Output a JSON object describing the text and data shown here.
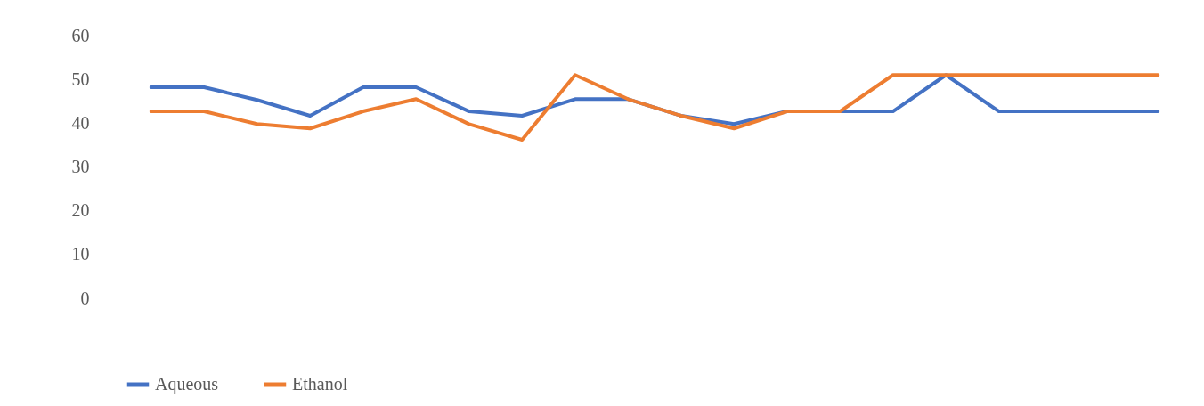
{
  "chart_data": {
    "type": "line",
    "categories": [
      null,
      null,
      null,
      null,
      null,
      null,
      null,
      null,
      null,
      null,
      null,
      null,
      null,
      null,
      null,
      null,
      null,
      null,
      null,
      null
    ],
    "series": [
      {
        "name": "Aqueous",
        "color": "#4472c4",
        "values": [
          48.2,
          48.2,
          45.3,
          41.7,
          48.2,
          48.2,
          42.7,
          41.7,
          45.5,
          45.5,
          41.7,
          39.8,
          42.7,
          42.7,
          42.7,
          51,
          42.7,
          42.7,
          42.7,
          42.7
        ]
      },
      {
        "name": "Ethanol",
        "color": "#ed7d31",
        "values": [
          42.7,
          42.7,
          39.8,
          38.8,
          42.7,
          45.5,
          39.8,
          36.2,
          51,
          45.5,
          41.7,
          38.8,
          42.7,
          42.7,
          51,
          51,
          51,
          51,
          51,
          51
        ]
      }
    ],
    "ylim": [
      0,
      60
    ],
    "yticks": [
      0,
      10,
      20,
      30,
      40,
      50,
      60
    ],
    "grid": false,
    "legend": "bottom",
    "tick_labels": "y",
    "line_style": "solid",
    "marker": "none"
  }
}
